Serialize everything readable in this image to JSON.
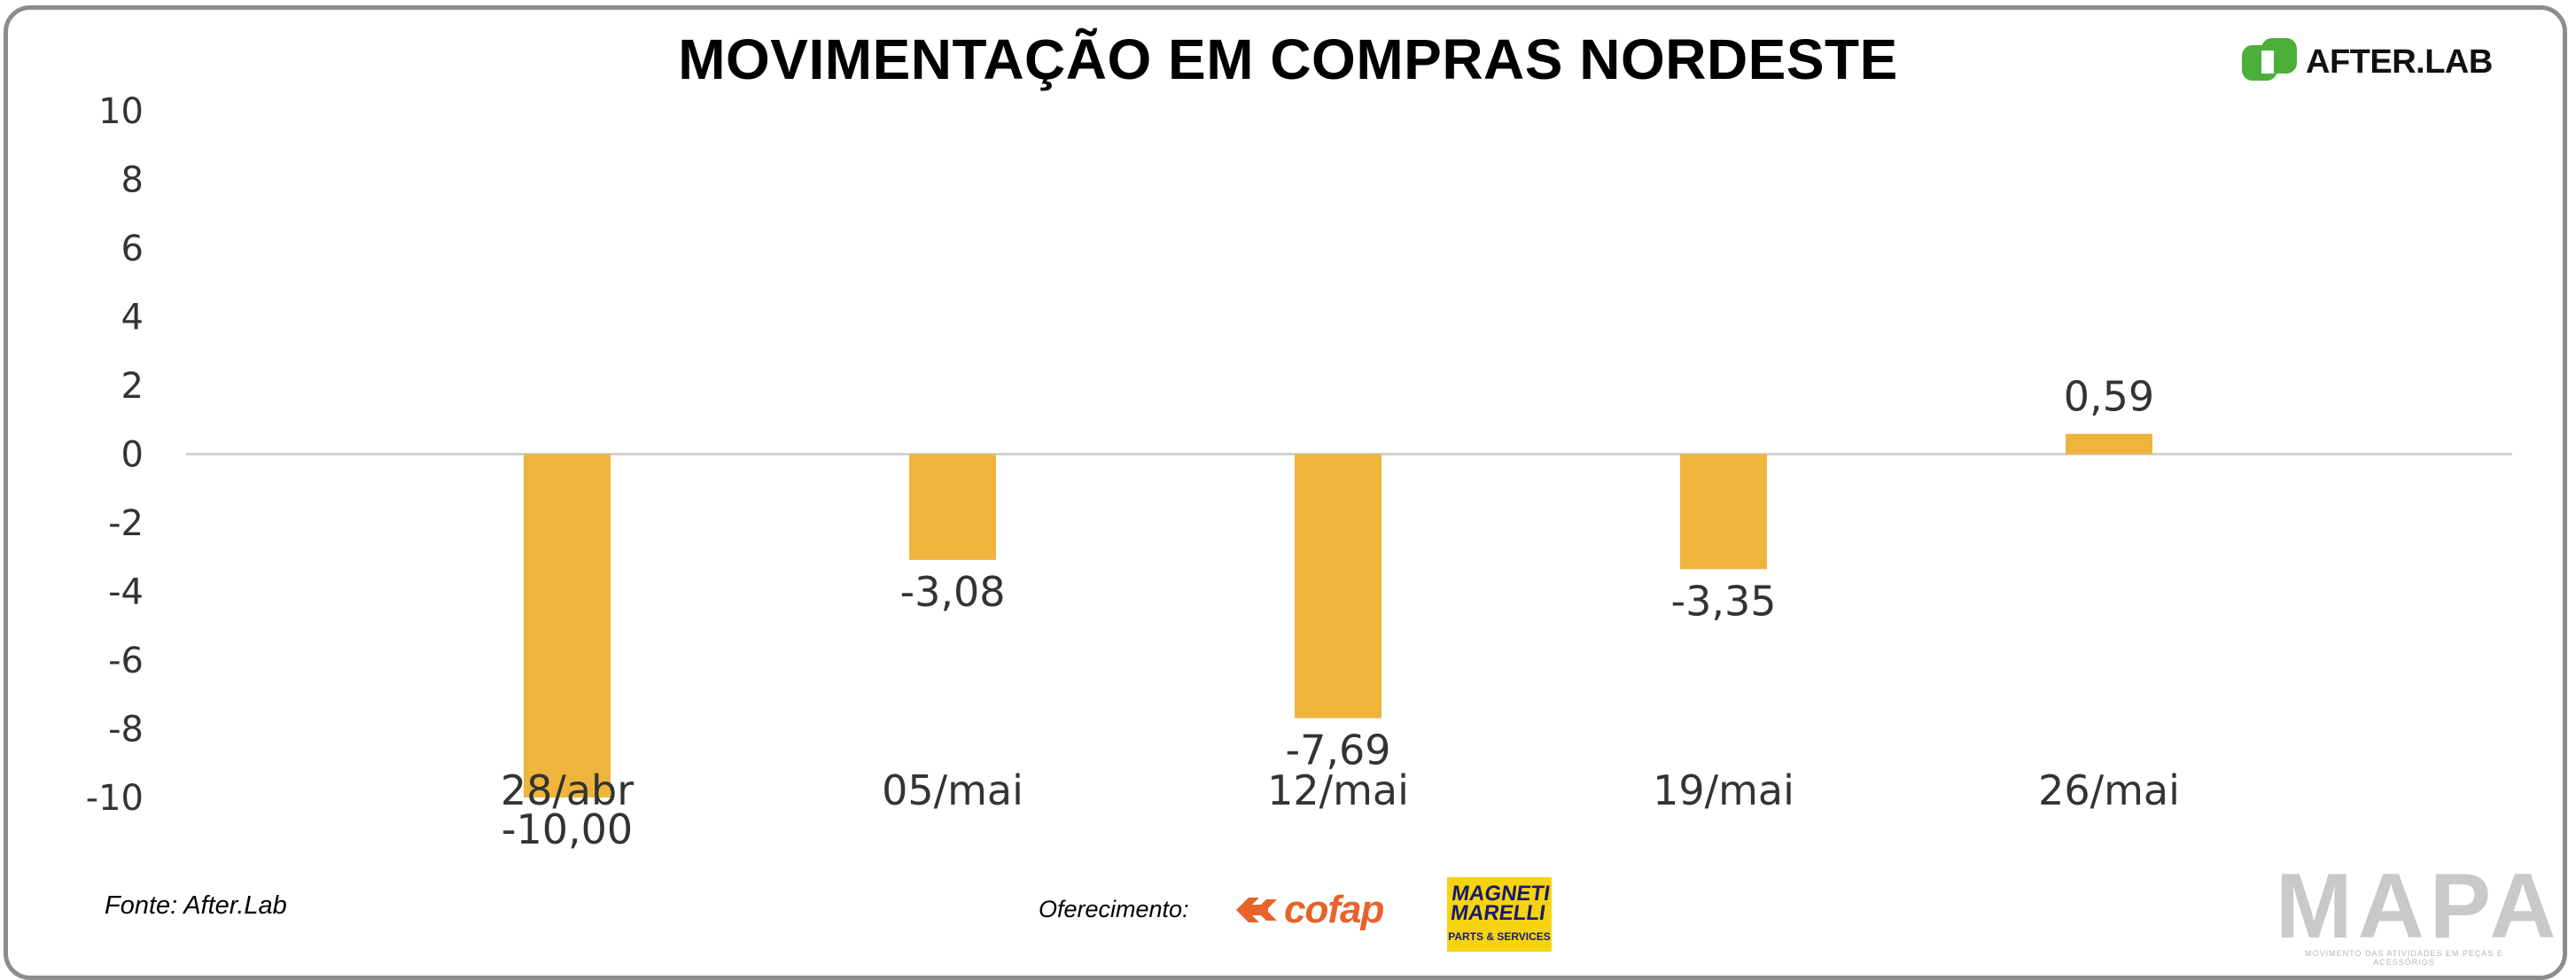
{
  "chart_data": {
    "type": "bar",
    "title": "MOVIMENTAÇÃO EM COMPRAS NORDESTE",
    "categories": [
      "28/abr",
      "05/mai",
      "12/mai",
      "19/mai",
      "26/mai"
    ],
    "values": [
      -10.0,
      -3.08,
      -7.69,
      -3.35,
      0.59
    ],
    "value_labels": [
      "-10,00",
      "-3,08",
      "-7,69",
      "-3,35",
      "0,59"
    ],
    "ylim": [
      -10,
      10
    ],
    "yticks": [
      10,
      8,
      6,
      4,
      2,
      0,
      -2,
      -4,
      -6,
      -8,
      -10
    ],
    "bar_color": "#EEB43C",
    "grid": false,
    "legend": "none"
  },
  "logo": {
    "text": "AFTER.LAB",
    "color": "#4caf3a"
  },
  "footer": {
    "source": "Fonte: After.Lab",
    "sponsor_label": "Oferecimento:",
    "sponsor1": "cofap",
    "sponsor2_line1": "MAGNETI MARELLI",
    "sponsor2_line2": "PARTS & SERVICES",
    "brand": "MAPA",
    "brand_tagline": "MOVIMENTO DAS ATIVIDADES EM PEÇAS E ACESSÓRIOS"
  }
}
